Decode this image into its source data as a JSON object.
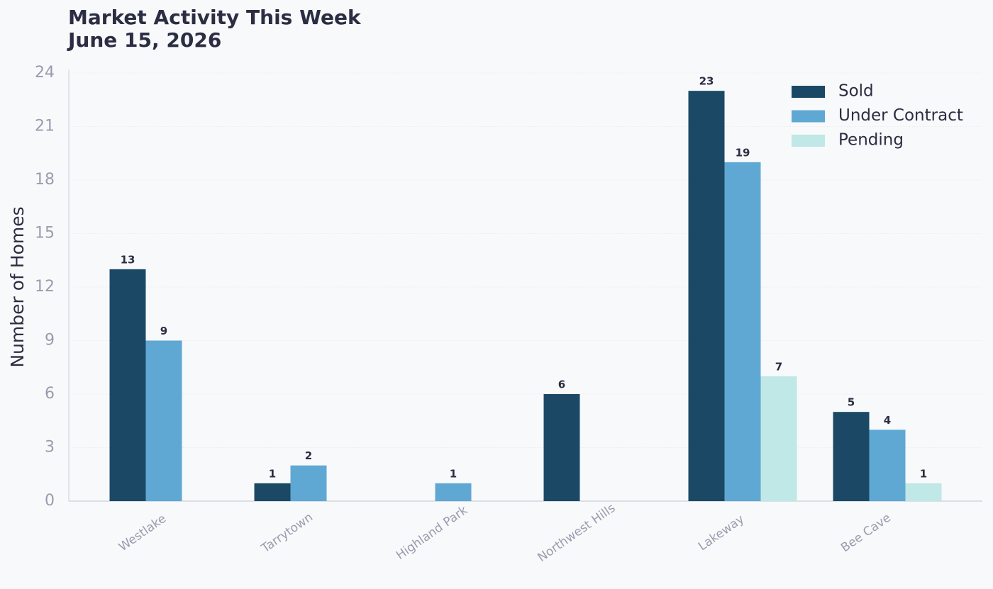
{
  "chart_data": {
    "type": "bar",
    "title": "Market Activity This Week",
    "subtitle": "June 15, 2026",
    "y_label": "Number of Homes",
    "categories": [
      "Westlake",
      "Tarrytown",
      "Highland Park",
      "Northwest Hills",
      "Lakeway",
      "Bee Cave"
    ],
    "series": [
      {
        "name": "Sold",
        "color": "#1b4965",
        "values": [
          13,
          1,
          0,
          6,
          23,
          5
        ]
      },
      {
        "name": "Under Contract",
        "color": "#5fa8d3",
        "values": [
          9,
          2,
          1,
          0,
          19,
          4
        ]
      },
      {
        "name": "Pending",
        "color": "#bfe8e6",
        "values": [
          0,
          0,
          0,
          0,
          7,
          1
        ]
      }
    ],
    "ylim": [
      0,
      24
    ],
    "yticks": [
      0,
      3,
      6,
      9,
      12,
      15,
      18,
      21,
      24
    ],
    "grid": true,
    "legend": "upper right"
  }
}
